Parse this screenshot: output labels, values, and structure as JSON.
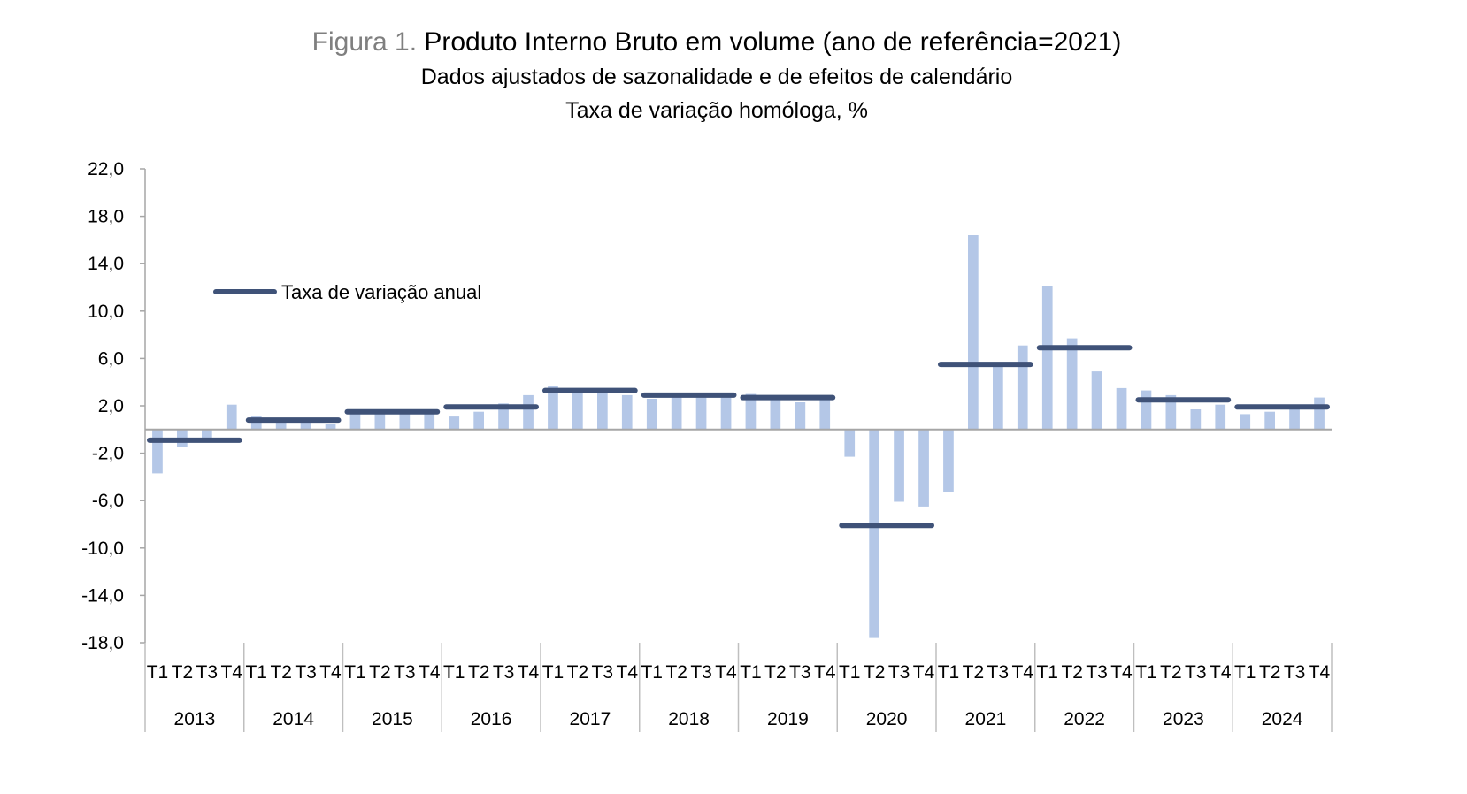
{
  "title": {
    "prefix": "Figura 1.",
    "main": "Produto Interno Bruto em volume (ano de referência=2021)",
    "subtitle1": "Dados ajustados de sazonalidade e de efeitos de calendário",
    "subtitle2": "Taxa de variação homóloga, %"
  },
  "chart_data": {
    "type": "bar",
    "ylim": [
      -18,
      22
    ],
    "yticks": [
      "22,0",
      "18,0",
      "14,0",
      "10,0",
      "6,0",
      "2,0",
      "-2,0",
      "-6,0",
      "-10,0",
      "-14,0",
      "-18,0"
    ],
    "ytick_values": [
      22,
      18,
      14,
      10,
      6,
      2,
      -2,
      -6,
      -10,
      -14,
      -18
    ],
    "years": [
      "2013",
      "2014",
      "2015",
      "2016",
      "2017",
      "2018",
      "2019",
      "2020",
      "2021",
      "2022",
      "2023",
      "2024"
    ],
    "quarters": [
      "T1",
      "T2",
      "T3",
      "T4"
    ],
    "series": [
      {
        "name": "",
        "type": "bar",
        "color": "#b4c7e7",
        "values": [
          -3.7,
          -1.5,
          -0.7,
          2.1,
          1.1,
          0.6,
          0.6,
          0.5,
          1.7,
          1.6,
          1.4,
          1.3,
          1.1,
          1.5,
          2.2,
          2.9,
          3.7,
          3.2,
          3.2,
          2.9,
          2.6,
          2.9,
          2.7,
          2.7,
          3.0,
          2.6,
          2.3,
          2.6,
          -2.3,
          -17.6,
          -6.1,
          -6.5,
          -5.3,
          16.4,
          5.5,
          7.1,
          12.1,
          7.7,
          4.9,
          3.5,
          3.3,
          2.9,
          1.7,
          2.1,
          1.3,
          1.5,
          1.9,
          2.7
        ]
      },
      {
        "name": "Taxa de variação anual",
        "type": "line",
        "color": "#3f5278",
        "values": [
          -0.9,
          0.8,
          1.5,
          1.9,
          3.3,
          2.9,
          2.7,
          -8.1,
          5.5,
          6.9,
          2.5,
          1.9
        ]
      }
    ],
    "legend": "top-left"
  }
}
